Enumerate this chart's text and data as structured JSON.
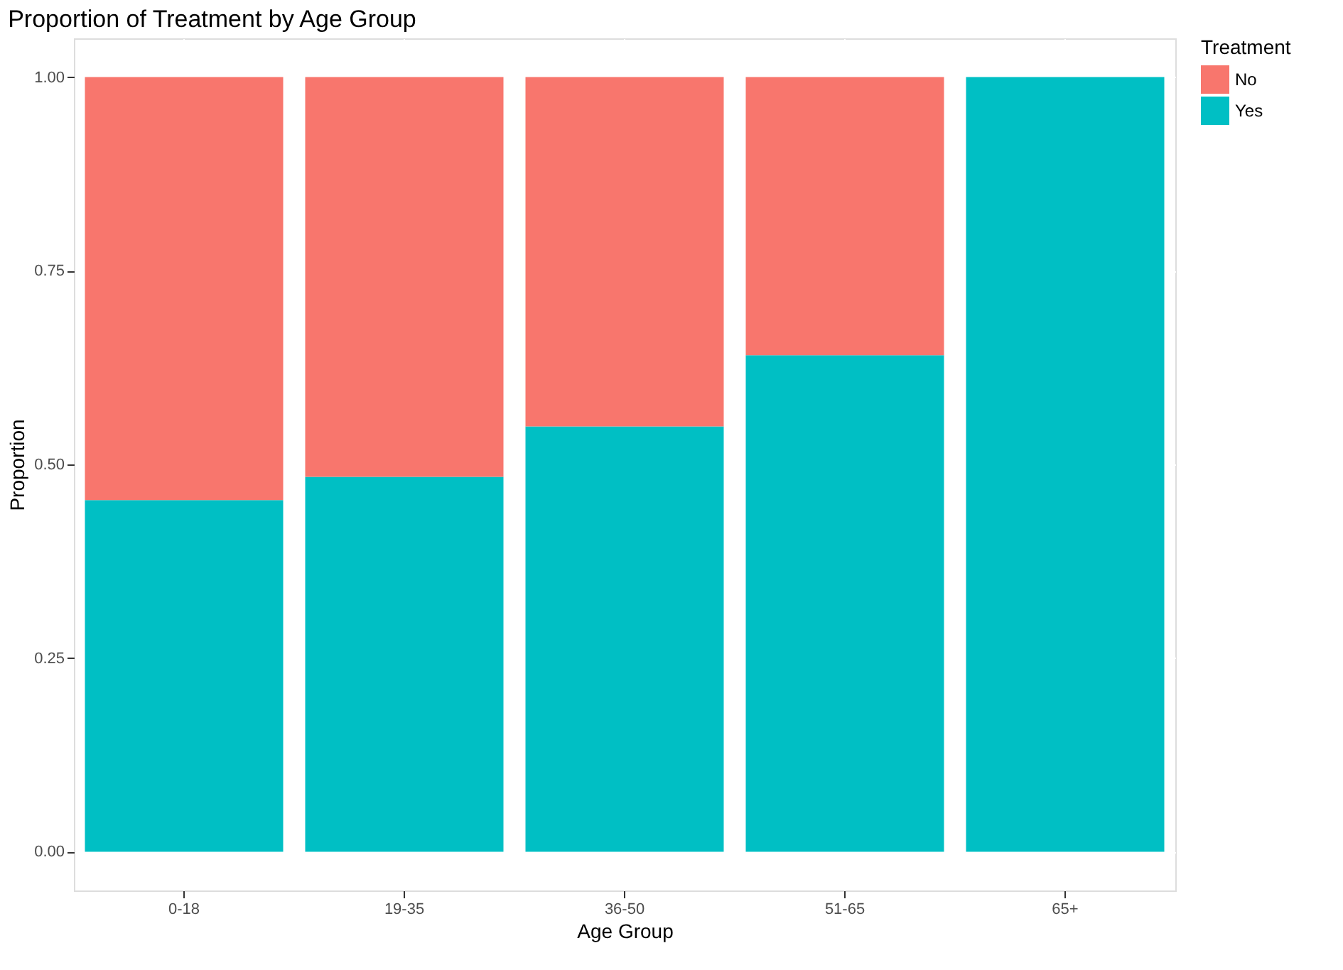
{
  "chart_data": {
    "type": "bar",
    "title": "Proportion of Treatment by Age Group",
    "xlabel": "Age Group",
    "ylabel": "Proportion",
    "legend_title": "Treatment",
    "categories": [
      "0-18",
      "19-35",
      "36-50",
      "51-65",
      "65+"
    ],
    "stacked": true,
    "series": [
      {
        "name": "Yes",
        "color": "#00bfc4",
        "values": [
          0.454,
          0.484,
          0.549,
          0.641,
          1.0
        ]
      },
      {
        "name": "No",
        "color": "#f8766d",
        "values": [
          0.546,
          0.516,
          0.451,
          0.359,
          0.0
        ]
      }
    ],
    "ylim": [
      -0.05,
      1.05
    ],
    "yticks": [
      {
        "value": 0,
        "label": "0.00"
      },
      {
        "value": 0.25,
        "label": "0.25"
      },
      {
        "value": 0.5,
        "label": "0.50"
      },
      {
        "value": 0.75,
        "label": "0.75"
      },
      {
        "value": 1,
        "label": "1.00"
      }
    ],
    "grid": true,
    "legend": "right"
  }
}
